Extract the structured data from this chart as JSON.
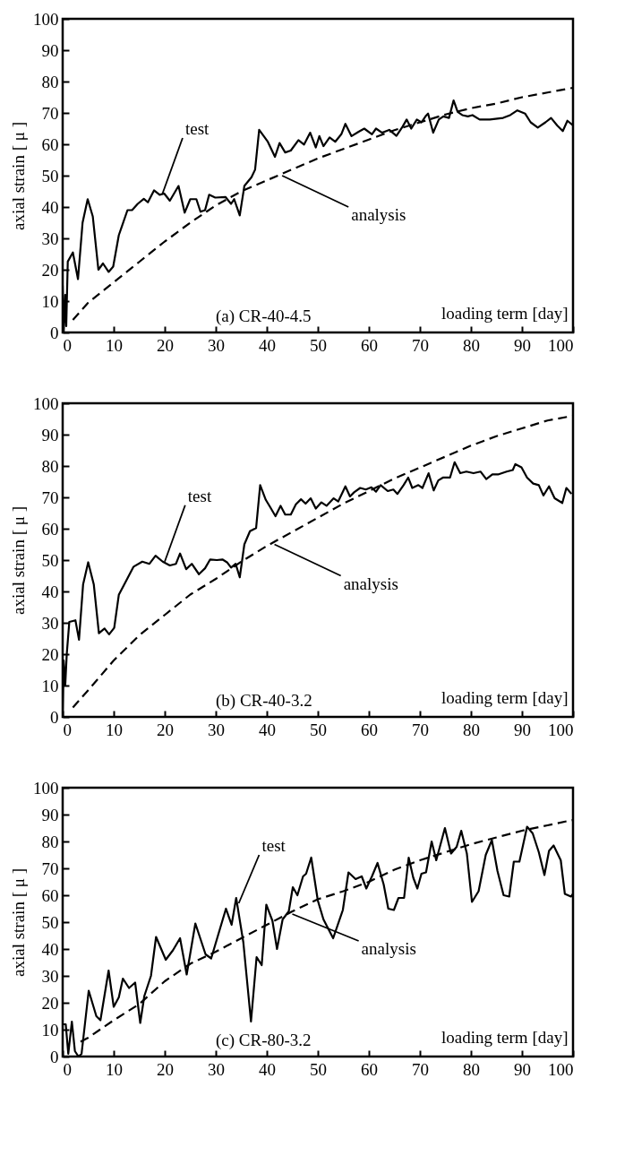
{
  "chart_data": [
    {
      "type": "line",
      "xlabel": "loading term [day]",
      "ylabel": "axial strain [ μ ]",
      "xlim": [
        0,
        100
      ],
      "ylim": [
        0,
        100
      ],
      "xticks": [
        0,
        10,
        20,
        30,
        40,
        50,
        60,
        70,
        80,
        90,
        100
      ],
      "yticks": [
        0,
        10,
        20,
        30,
        40,
        50,
        60,
        70,
        80,
        90,
        100
      ],
      "annotations": [
        "(a) CR-40-4.5",
        {
          "text": "test",
          "x": 19.5,
          "y": 44
        },
        {
          "text": "analysis",
          "x": 43,
          "y": 50
        }
      ],
      "series": [
        {
          "color": "#000000",
          "line_style": "solid",
          "x": [
            0,
            0.2,
            0.5,
            0.7,
            1,
            2,
            3,
            3.9,
            4.9,
            5.9,
            7,
            7.9,
            9,
            9.9,
            11,
            12.7,
            13.6,
            14.7,
            15.9,
            16.7,
            17.9,
            19,
            19.9,
            21,
            22.7,
            23.9,
            25,
            26.2,
            27,
            27.9,
            28.7,
            29.9,
            31.9,
            33,
            33.6,
            34.7,
            35.6,
            37,
            37.7,
            38.5,
            40.2,
            41.6,
            42.5,
            43.6,
            44.7,
            46.2,
            47.3,
            48.5,
            49.6,
            50.3,
            51.1,
            52.3,
            53.4,
            54.6,
            55.4,
            56.6,
            58,
            59.1,
            60.6,
            61.4,
            62.6,
            64,
            65.4,
            66.6,
            67.4,
            68.3,
            69.4,
            70.3,
            71.1,
            71.6,
            72.6,
            73.7,
            74.6,
            75.7,
            76.6,
            77.4,
            78.3,
            79.4,
            80.3,
            81.7,
            83.7,
            86.3,
            87.7,
            89.1,
            90.6,
            91.7,
            93.1,
            94.6,
            95.7,
            96.9,
            98,
            98.9,
            100
          ],
          "values": [
            15,
            0,
            12,
            2,
            22.6,
            25.5,
            17,
            35,
            42.5,
            37,
            20,
            22,
            19.3,
            21,
            31,
            39,
            39,
            41,
            42.6,
            41.5,
            45.3,
            43.9,
            44.3,
            42,
            46.7,
            38.2,
            42.5,
            42.5,
            38.5,
            39,
            43.9,
            43,
            43.2,
            41,
            42.5,
            37.3,
            46.7,
            49.5,
            51.9,
            64.6,
            60.8,
            56,
            60.4,
            57.4,
            58,
            61.3,
            59.9,
            63.7,
            59,
            62.6,
            59.4,
            62.2,
            60.8,
            63.2,
            66.5,
            62.6,
            64,
            65,
            63.2,
            65,
            63.7,
            64.6,
            62.7,
            65.6,
            67.9,
            65,
            67.9,
            67,
            68.9,
            69.8,
            63.7,
            67.9,
            68.9,
            68.4,
            74,
            70.3,
            69.3,
            68.9,
            69.3,
            67.9,
            67.9,
            68.4,
            69.3,
            70.8,
            69.8,
            67,
            65.3,
            67,
            68.4,
            66,
            64.2,
            67.5,
            66
          ]
        },
        {
          "color": "#000000",
          "line_style": "dashed",
          "x": [
            2,
            5,
            10,
            15,
            20,
            25,
            30,
            35,
            40,
            45,
            50,
            55,
            60,
            65,
            70,
            75,
            80,
            85,
            90,
            95,
            100
          ],
          "values": [
            4,
            9.5,
            16,
            22.5,
            29,
            35,
            40.5,
            45,
            48.5,
            52,
            55.5,
            58.5,
            61.5,
            64.5,
            67,
            69.5,
            71.5,
            73,
            75,
            76.5,
            78
          ]
        }
      ]
    },
    {
      "type": "line",
      "xlabel": "loading term [day]",
      "ylabel": "axial strain [ μ ]",
      "xlim": [
        0,
        100
      ],
      "ylim": [
        0,
        100
      ],
      "xticks": [
        0,
        10,
        20,
        30,
        40,
        50,
        60,
        70,
        80,
        90,
        100
      ],
      "yticks": [
        0,
        10,
        20,
        30,
        40,
        50,
        60,
        70,
        80,
        90,
        100
      ],
      "annotations": [
        "(b) CR-40-3.2",
        {
          "text": "test",
          "x": 20,
          "y": 49.5
        },
        {
          "text": "analysis",
          "x": 41.5,
          "y": 55
        }
      ],
      "series": [
        {
          "color": "#000000",
          "line_style": "solid",
          "x": [
            0,
            0.2,
            0.5,
            0.8,
            1.3,
            2.5,
            3.2,
            4,
            5,
            6.1,
            7.1,
            8.2,
            9.1,
            10.1,
            11,
            12.5,
            13.9,
            15.6,
            17,
            18.2,
            19.6,
            21,
            22.2,
            23,
            24.2,
            25.3,
            26.7,
            27.9,
            28.9,
            30.2,
            31.3,
            32.2,
            33,
            33.9,
            34.7,
            35.6,
            36.7,
            37.9,
            38.7,
            39.8,
            40.7,
            41.7,
            42.7,
            43.6,
            44.7,
            45.7,
            46.7,
            47.6,
            48.6,
            49.6,
            50.7,
            51.7,
            53.1,
            54,
            55.4,
            56.3,
            57.1,
            58.3,
            59.4,
            60.5,
            61.4,
            62.3,
            63.7,
            64.8,
            65.6,
            66.8,
            67.7,
            68.5,
            69.7,
            70.5,
            71.7,
            72.7,
            73.6,
            74.5,
            75.9,
            76.8,
            77.9,
            79.1,
            80.5,
            81.9,
            83,
            84.2,
            85.3,
            87,
            88.2,
            88.7,
            89.9,
            91,
            92.2,
            93.3,
            94.2,
            95.3,
            96.4,
            97.9,
            98.7,
            99.7
          ],
          "values": [
            0,
            18,
            10,
            20,
            30.3,
            30.8,
            24.6,
            42.2,
            49.3,
            42.2,
            26.7,
            28.2,
            26.3,
            28.4,
            38.9,
            43.6,
            47.9,
            49.5,
            48.8,
            51.4,
            49.5,
            48.3,
            48.8,
            52.1,
            47.1,
            48.8,
            45.5,
            47.4,
            50.2,
            50,
            50.2,
            49.3,
            47.6,
            48.8,
            44.5,
            55,
            59.2,
            60.2,
            73.9,
            69.2,
            66.8,
            64,
            67.3,
            64.5,
            64.5,
            67.8,
            69.4,
            68,
            69.7,
            66.4,
            68.4,
            67.3,
            69.7,
            68.7,
            73.5,
            70.3,
            71.6,
            73,
            72.5,
            73.2,
            71.8,
            73.9,
            72,
            72.5,
            71.1,
            73.9,
            76.3,
            73,
            73.9,
            73,
            77.7,
            72.2,
            75.4,
            76.3,
            76.3,
            81.2,
            77.7,
            78.2,
            77.7,
            78.2,
            75.8,
            77.3,
            77.3,
            78.2,
            78.7,
            80.6,
            79.6,
            76.3,
            74.4,
            73.9,
            70.6,
            73.5,
            69.7,
            68.2,
            73,
            71.1
          ]
        },
        {
          "color": "#000000",
          "line_style": "dashed",
          "x": [
            2,
            5,
            10,
            15,
            20,
            25,
            30,
            35,
            40,
            45,
            50,
            55,
            60,
            65,
            70,
            75,
            80,
            85,
            90,
            95,
            100
          ],
          "values": [
            3,
            8.5,
            18,
            26,
            32.5,
            39,
            44,
            49.5,
            54.5,
            59,
            63.5,
            68,
            72,
            76,
            79.5,
            83,
            86.5,
            89.5,
            92,
            94.5,
            96
          ]
        }
      ]
    },
    {
      "type": "line",
      "xlabel": "loading term [day]",
      "ylabel": "axial strain [ μ ]",
      "xlim": [
        0,
        100
      ],
      "ylim": [
        0,
        100
      ],
      "xticks": [
        0,
        10,
        20,
        30,
        40,
        50,
        60,
        70,
        80,
        90,
        100
      ],
      "yticks": [
        0,
        10,
        20,
        30,
        40,
        50,
        60,
        70,
        80,
        90,
        100
      ],
      "annotations": [
        "(c) CR-80-3.2",
        {
          "text": "test",
          "x": 34.5,
          "y": 57
        },
        {
          "text": "analysis",
          "x": 45,
          "y": 53
        }
      ],
      "series": [
        {
          "color": "#000000",
          "line_style": "solid",
          "x": [
            0,
            0.6,
            1.1,
            1.8,
            2.4,
            3.1,
            3.7,
            5.1,
            6.6,
            7.4,
            9,
            10,
            11,
            11.8,
            13,
            14.2,
            15.2,
            16,
            17.3,
            18.3,
            20.2,
            21.6,
            23,
            24.3,
            26,
            28,
            29.1,
            30.9,
            32,
            33.1,
            34,
            35.4,
            36.9,
            38,
            39,
            39.9,
            41.1,
            42,
            43.1,
            44.3,
            45.1,
            46,
            47.1,
            47.7,
            48.7,
            50,
            51.1,
            53,
            54.9,
            56,
            57.4,
            58.6,
            59.5,
            60.6,
            61.7,
            62.9,
            63.8,
            64.9,
            65.8,
            66.9,
            67.8,
            68.7,
            69.5,
            70.3,
            71.2,
            72.3,
            73.2,
            74.9,
            76.1,
            77.2,
            78.1,
            79.2,
            80.2,
            81.5,
            82.9,
            84.1,
            85.2,
            86.4,
            87.5,
            88.4,
            89.5,
            91,
            92.1,
            93.3,
            94.4,
            95.3,
            96.2,
            97.6,
            98.4,
            99.6,
            100
          ],
          "values": [
            12,
            12,
            1,
            13,
            2,
            0,
            1,
            24.5,
            15,
            13.5,
            32,
            18.5,
            22,
            29,
            25.5,
            27.5,
            12.5,
            22.5,
            30,
            44.5,
            36,
            39.5,
            44,
            30.5,
            49.5,
            38,
            36.5,
            48,
            55,
            49,
            59,
            42.5,
            13,
            37,
            34,
            56.5,
            50.5,
            40,
            51,
            54,
            63,
            60,
            67,
            68,
            74,
            58,
            51,
            44,
            54.5,
            68.5,
            66,
            67,
            62.5,
            67,
            72,
            64,
            55,
            54.5,
            59,
            59,
            74,
            66.5,
            62.5,
            68,
            68.5,
            80,
            73,
            85,
            75.5,
            78,
            84,
            75.5,
            57.5,
            61.5,
            75,
            80.5,
            69,
            60,
            59.5,
            72.5,
            72.5,
            85.5,
            83,
            76,
            67.5,
            76.5,
            78.5,
            73,
            60.5,
            59.5,
            60.5
          ]
        },
        {
          "color": "#000000",
          "line_style": "dashed",
          "x": [
            3.5,
            5,
            10,
            15,
            20,
            25,
            30,
            35,
            40,
            45,
            50,
            55,
            60,
            65,
            70,
            75,
            80,
            85,
            90,
            95,
            100
          ],
          "values": [
            5.5,
            7,
            13.5,
            19.5,
            28,
            34.5,
            39,
            44,
            49,
            54,
            58.5,
            61.5,
            65,
            69.5,
            73,
            76,
            79,
            81.5,
            84,
            86,
            88
          ]
        }
      ]
    }
  ]
}
